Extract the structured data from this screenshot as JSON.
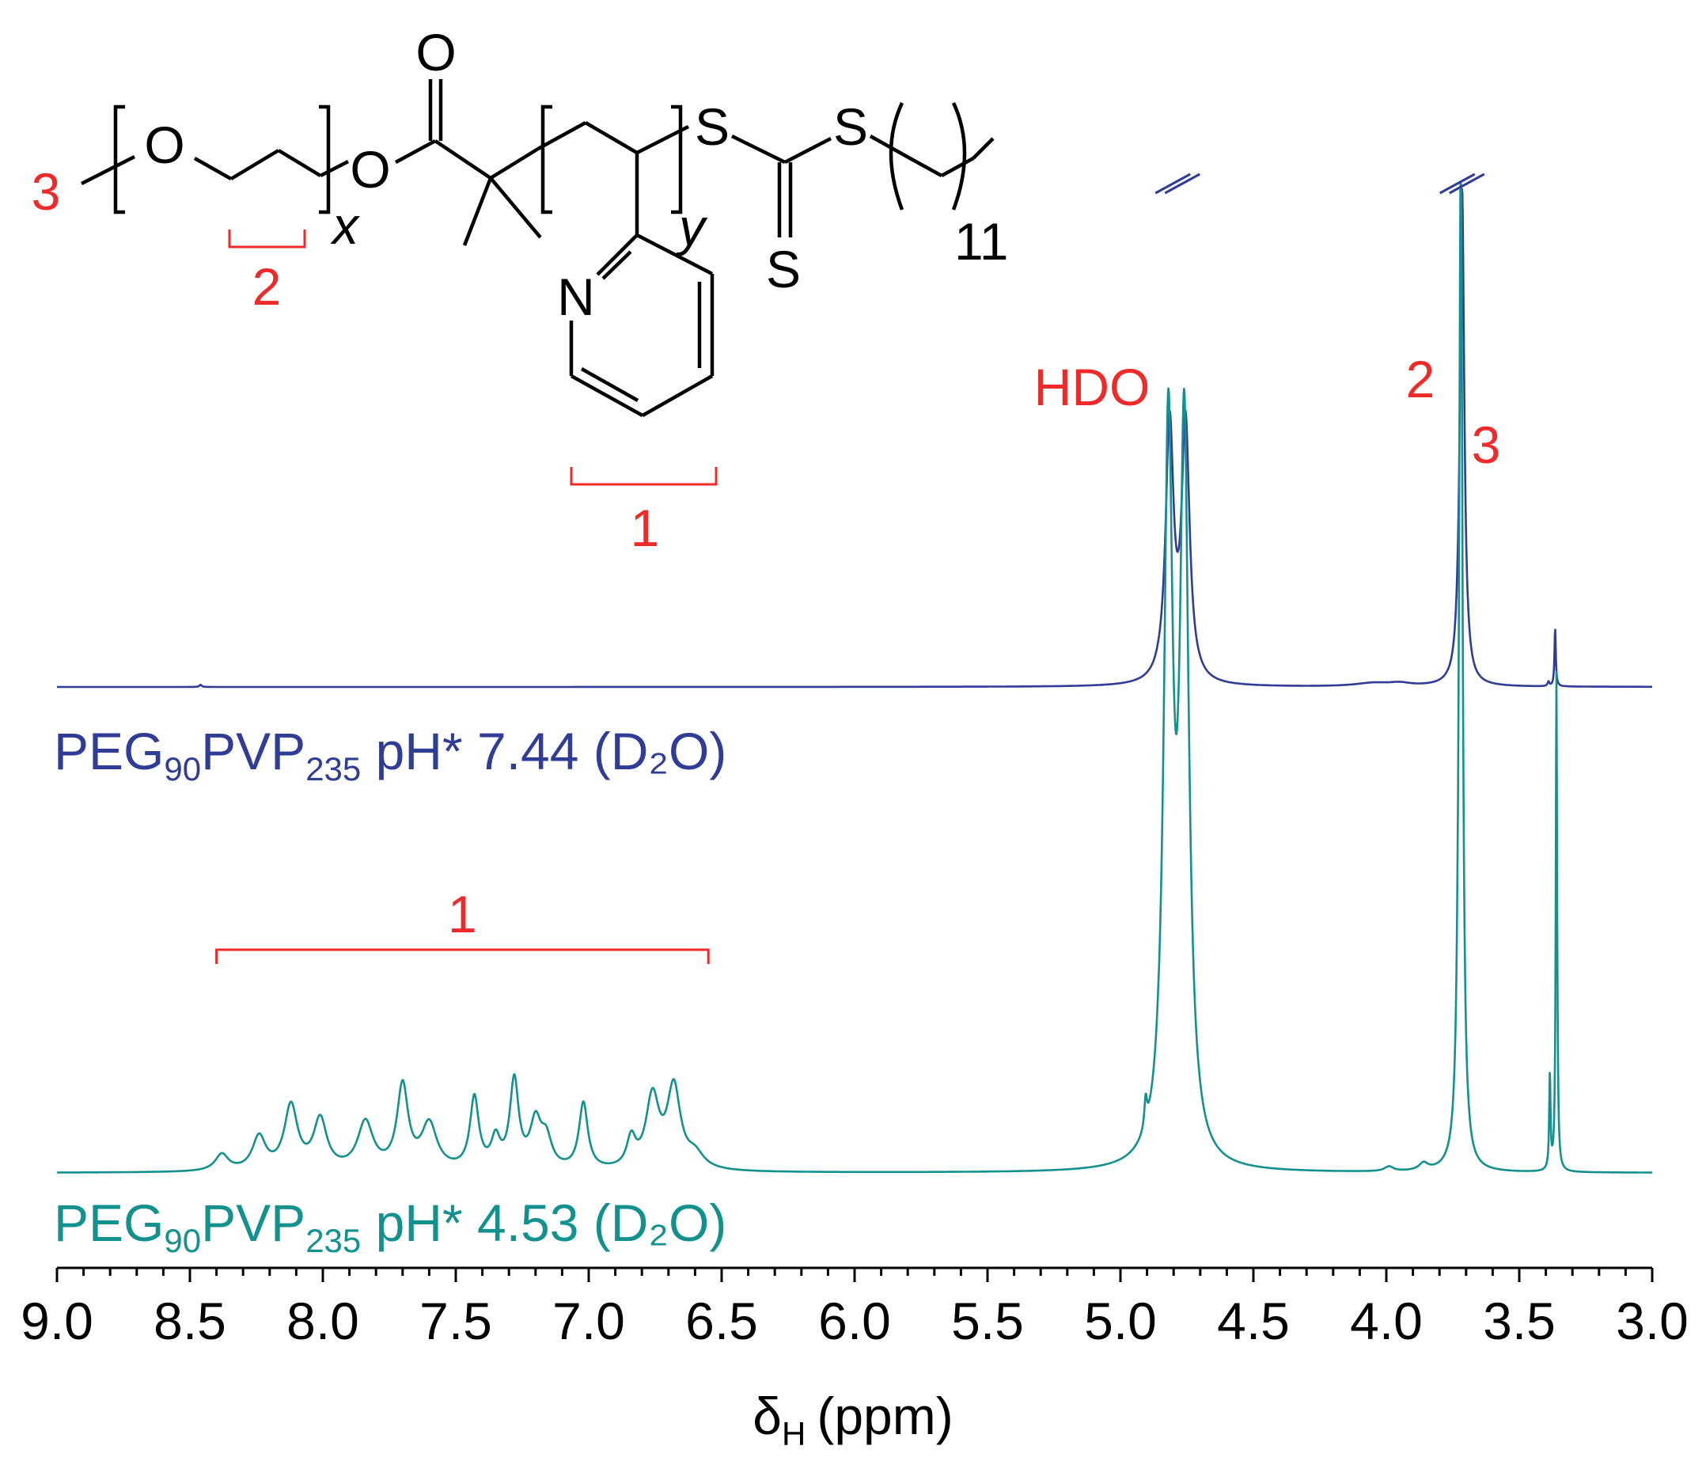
{
  "chart_data": {
    "type": "line",
    "xlabel": "δ",
    "xlabel_subscript": "H",
    "xlabel_unit": "(ppm)",
    "xlim": [
      9.0,
      3.0
    ],
    "x_reversed": true,
    "xticks": [
      "9.0",
      "8.5",
      "8.0",
      "7.5",
      "7.0",
      "6.5",
      "6.0",
      "5.5",
      "5.0",
      "4.5",
      "4.0",
      "3.5",
      "3.0"
    ],
    "grid": false,
    "series": [
      {
        "label_parts": [
          "PEG",
          "90",
          "PVP",
          "235",
          " pH* 7.44 (D₂O)"
        ],
        "color": "#2f3d96",
        "peaks": [
          {
            "center": 8.46,
            "height": 0.04,
            "width": 0.005
          },
          {
            "center": 4.815,
            "height": 4.6,
            "width": 0.018
          },
          {
            "center": 4.755,
            "height": 4.6,
            "width": 0.018
          },
          {
            "center": 4.05,
            "height": 0.06,
            "width": 0.08
          },
          {
            "center": 3.95,
            "height": 0.05,
            "width": 0.05
          },
          {
            "center": 3.715,
            "height": 9.0,
            "width": 0.01
          },
          {
            "center": 3.39,
            "height": 0.08,
            "width": 0.004
          },
          {
            "center": 3.365,
            "height": 1.05,
            "width": 0.003
          }
        ]
      },
      {
        "label_parts": [
          "PEG",
          "90",
          "PVP",
          "235",
          " pH* 4.53 (D₂O)"
        ],
        "color": "#12918f",
        "peaks": [
          {
            "center": 8.38,
            "height": 0.07,
            "width": 0.03
          },
          {
            "center": 8.24,
            "height": 0.14,
            "width": 0.03
          },
          {
            "center": 8.12,
            "height": 0.27,
            "width": 0.03
          },
          {
            "center": 8.01,
            "height": 0.21,
            "width": 0.03
          },
          {
            "center": 7.84,
            "height": 0.2,
            "width": 0.035
          },
          {
            "center": 7.7,
            "height": 0.35,
            "width": 0.025
          },
          {
            "center": 7.6,
            "height": 0.19,
            "width": 0.035
          },
          {
            "center": 7.43,
            "height": 0.3,
            "width": 0.02
          },
          {
            "center": 7.35,
            "height": 0.12,
            "width": 0.02
          },
          {
            "center": 7.28,
            "height": 0.37,
            "width": 0.02
          },
          {
            "center": 7.2,
            "height": 0.19,
            "width": 0.025
          },
          {
            "center": 7.16,
            "height": 0.12,
            "width": 0.025
          },
          {
            "center": 7.02,
            "height": 0.28,
            "width": 0.02
          },
          {
            "center": 6.84,
            "height": 0.12,
            "width": 0.02
          },
          {
            "center": 6.76,
            "height": 0.3,
            "width": 0.03
          },
          {
            "center": 6.68,
            "height": 0.34,
            "width": 0.03
          },
          {
            "center": 6.6,
            "height": 0.06,
            "width": 0.04
          },
          {
            "center": 4.905,
            "height": 0.12,
            "width": 0.006
          },
          {
            "center": 4.82,
            "height": 3.0,
            "width": 0.02
          },
          {
            "center": 4.76,
            "height": 3.0,
            "width": 0.02
          },
          {
            "center": 3.99,
            "height": 0.02,
            "width": 0.02
          },
          {
            "center": 3.86,
            "height": 0.03,
            "width": 0.02
          },
          {
            "center": 3.72,
            "height": 4.3,
            "width": 0.008
          },
          {
            "center": 3.385,
            "height": 0.4,
            "width": 0.003
          },
          {
            "center": 3.36,
            "height": 2.1,
            "width": 0.003
          }
        ]
      }
    ],
    "annotations": {
      "hdo": "HDO",
      "peak_2": "2",
      "peak_3": "3",
      "aromatic_1": "1"
    }
  },
  "structure": {
    "methyl_label": "3",
    "oxygen_1": "O",
    "oxygen_2": "O",
    "carbonyl_oxygen": "O",
    "repeat_x": "x",
    "repeat_y": "y",
    "sulfur_1": "S",
    "sulfur_2": "S",
    "thione_sulfur": "S",
    "nitrogen": "N",
    "chain_count": "11",
    "bracket_label_2": "2",
    "bracket_label_1": "1"
  }
}
